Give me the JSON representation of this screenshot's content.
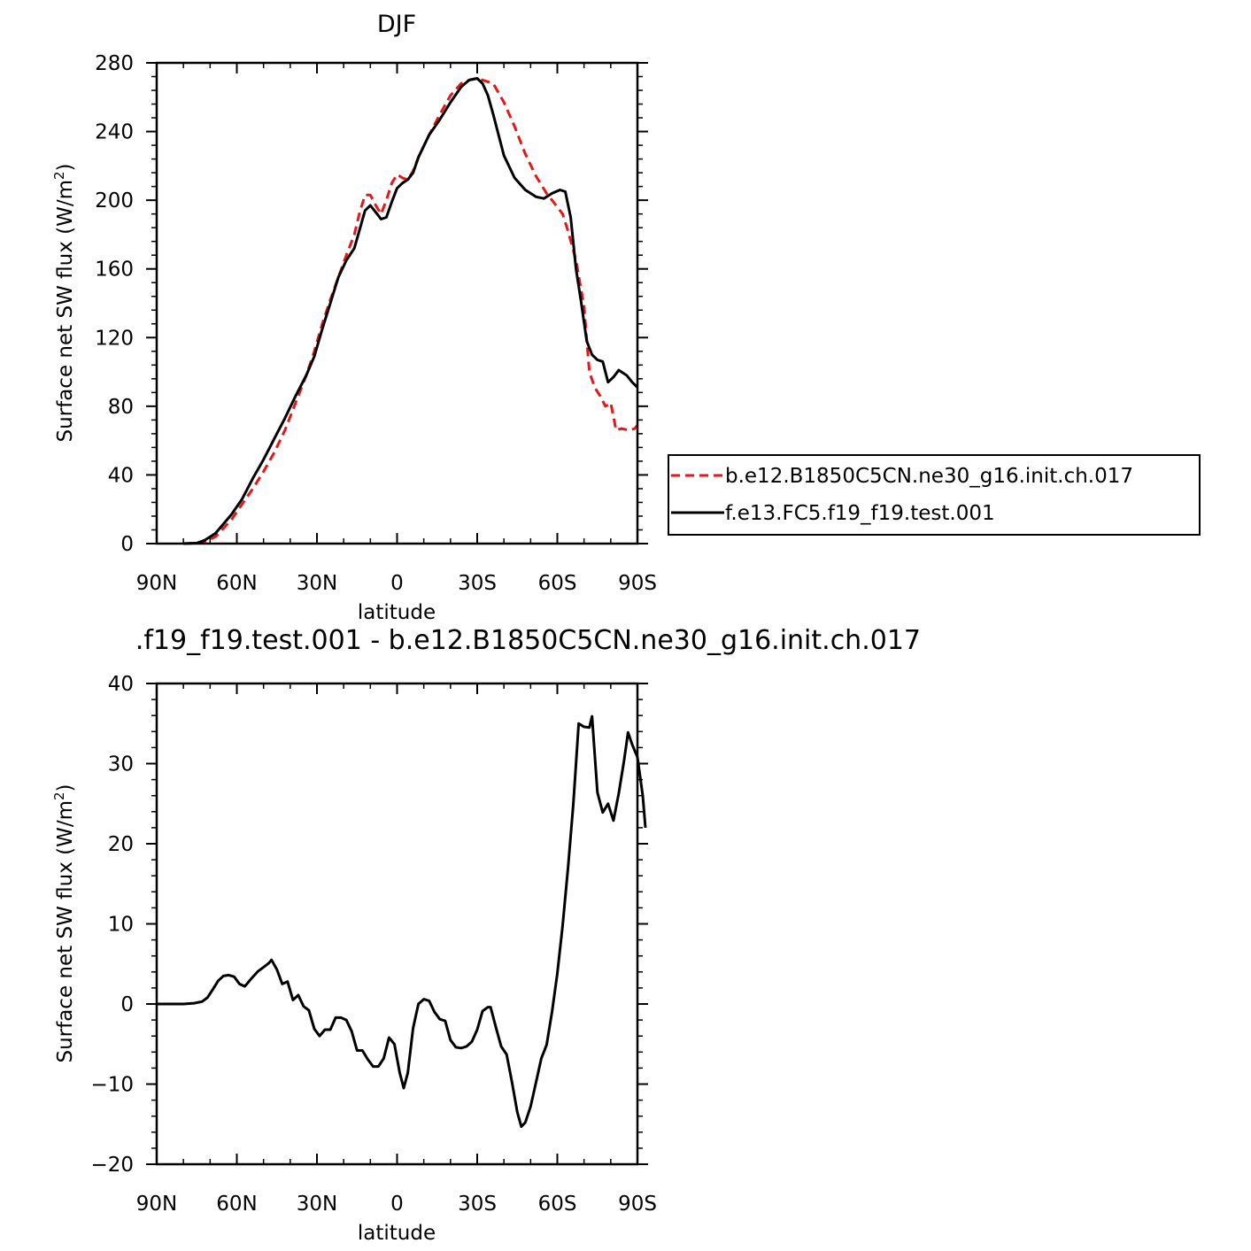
{
  "chart_data": [
    {
      "type": "line",
      "title": "DJF",
      "xlabel": "latitude",
      "ylabel": "Surface net SW flux (W/m²)",
      "ylabel_parts": {
        "main": "Surface net SW flux (W/m",
        "sup": "2",
        "end": ")"
      },
      "xlim": [
        -90,
        90
      ],
      "ylim": [
        0,
        280
      ],
      "x_ticks": [
        -90,
        -60,
        -30,
        0,
        30,
        60,
        90
      ],
      "x_tick_labels": [
        "90N",
        "60N",
        "30N",
        "0",
        "30S",
        "60S",
        "90S"
      ],
      "y_ticks": [
        0,
        40,
        80,
        120,
        160,
        200,
        240,
        280
      ],
      "y_tick_labels": [
        "0",
        "40",
        "80",
        "120",
        "160",
        "200",
        "240",
        "280"
      ],
      "legend": {
        "placement": "right"
      },
      "series": [
        {
          "name": "b.e12.B1850C5CN.ne30_g16.init.ch.017",
          "color": "#e8161b",
          "dash": "dashed",
          "points": [
            [
              -80,
              0
            ],
            [
              -75,
              0.3
            ],
            [
              -72,
              1
            ],
            [
              -68,
              4
            ],
            [
              -62,
              14
            ],
            [
              -58,
              23
            ],
            [
              -54,
              32
            ],
            [
              -50,
              42
            ],
            [
              -46,
              53
            ],
            [
              -42,
              66
            ],
            [
              -38,
              82
            ],
            [
              -34,
              98
            ],
            [
              -31,
              112
            ],
            [
              -28,
              128
            ],
            [
              -25,
              142
            ],
            [
              -22,
              155
            ],
            [
              -19,
              168
            ],
            [
              -16,
              180
            ],
            [
              -14,
              193
            ],
            [
              -12,
              203
            ],
            [
              -10,
              203
            ],
            [
              -8,
              197
            ],
            [
              -6,
              192
            ],
            [
              -4,
              200
            ],
            [
              -2,
              210
            ],
            [
              0,
              215
            ],
            [
              2,
              213
            ],
            [
              4,
              212
            ],
            [
              6,
              217
            ],
            [
              8,
              225
            ],
            [
              12,
              238
            ],
            [
              16,
              250
            ],
            [
              20,
              261
            ],
            [
              24,
              268
            ],
            [
              27,
              270
            ],
            [
              30,
              271
            ],
            [
              32,
              270
            ],
            [
              36,
              268
            ],
            [
              40,
              257
            ],
            [
              44,
              243
            ],
            [
              48,
              227
            ],
            [
              52,
              214
            ],
            [
              56,
              204
            ],
            [
              58,
              200
            ],
            [
              62,
              192
            ],
            [
              64,
              182
            ],
            [
              67,
              165
            ],
            [
              70,
              138
            ],
            [
              72,
              100
            ],
            [
              74,
              91
            ],
            [
              76,
              86
            ],
            [
              78,
              80
            ],
            [
              80,
              82
            ],
            [
              82,
              66
            ],
            [
              84,
              67
            ],
            [
              87,
              66
            ],
            [
              89,
              67
            ],
            [
              90,
              69
            ]
          ]
        },
        {
          "name": "f.e13.FC5.f19_f19.test.001",
          "color": "#000000",
          "dash": "solid",
          "points": [
            [
              -80,
              0
            ],
            [
              -75,
              0.3
            ],
            [
              -72,
              2
            ],
            [
              -68,
              6
            ],
            [
              -62,
              17
            ],
            [
              -58,
              26
            ],
            [
              -54,
              38
            ],
            [
              -50,
              49
            ],
            [
              -46,
              61
            ],
            [
              -42,
              73
            ],
            [
              -38,
              86
            ],
            [
              -34,
              98
            ],
            [
              -31,
              109
            ],
            [
              -28,
              125
            ],
            [
              -25,
              140
            ],
            [
              -22,
              155
            ],
            [
              -19,
              165
            ],
            [
              -16,
              172
            ],
            [
              -14,
              183
            ],
            [
              -12,
              194
            ],
            [
              -10,
              197
            ],
            [
              -8,
              193
            ],
            [
              -6,
              189
            ],
            [
              -4,
              190
            ],
            [
              -2,
              199
            ],
            [
              0,
              207
            ],
            [
              2,
              210
            ],
            [
              4,
              212
            ],
            [
              6,
              216
            ],
            [
              8,
              225
            ],
            [
              12,
              238
            ],
            [
              16,
              247
            ],
            [
              20,
              257
            ],
            [
              24,
              266
            ],
            [
              27,
              270
            ],
            [
              30,
              271
            ],
            [
              32,
              268
            ],
            [
              34,
              261
            ],
            [
              36,
              250
            ],
            [
              40,
              226
            ],
            [
              44,
              213
            ],
            [
              48,
              206
            ],
            [
              52,
              202
            ],
            [
              55,
              201
            ],
            [
              58,
              204
            ],
            [
              61,
              206
            ],
            [
              63,
              205
            ],
            [
              65,
              190
            ],
            [
              67,
              160
            ],
            [
              69,
              140
            ],
            [
              71,
              118
            ],
            [
              73,
              110
            ],
            [
              75,
              107
            ],
            [
              77,
              106
            ],
            [
              79,
              94
            ],
            [
              81,
              97
            ],
            [
              83,
              101
            ],
            [
              86,
              98
            ],
            [
              88,
              94
            ],
            [
              90,
              91
            ]
          ]
        }
      ]
    },
    {
      "type": "line",
      "title": ".f19_f19.test.001 - b.e12.B1850C5CN.ne30_g16.init.ch.017",
      "xlabel": "latitude",
      "ylabel": "Surface net SW flux (W/m²)",
      "ylabel_parts": {
        "main": "Surface net SW flux (W/m",
        "sup": "2",
        "end": ")"
      },
      "xlim": [
        -90,
        90
      ],
      "ylim": [
        -20,
        40
      ],
      "x_ticks": [
        -90,
        -60,
        -30,
        0,
        30,
        60,
        90
      ],
      "x_tick_labels": [
        "90N",
        "60N",
        "30N",
        "0",
        "30S",
        "60S",
        "90S"
      ],
      "y_ticks": [
        -20,
        -10,
        0,
        10,
        20,
        30,
        40
      ],
      "y_tick_labels": [
        "−20",
        "−10",
        "0",
        "10",
        "20",
        "30",
        "40"
      ],
      "series": [
        {
          "color": "#000000",
          "dash": "solid",
          "points": [
            [
              -90,
              0
            ],
            [
              -80,
              0
            ],
            [
              -76,
              0.1
            ],
            [
              -73,
              0.3
            ],
            [
              -71,
              0.8
            ],
            [
              -69,
              1.8
            ],
            [
              -67,
              2.9
            ],
            [
              -65,
              3.5
            ],
            [
              -63,
              3.6
            ],
            [
              -61,
              3.4
            ],
            [
              -59,
              2.5
            ],
            [
              -57,
              2.2
            ],
            [
              -55,
              3
            ],
            [
              -52,
              4.1
            ],
            [
              -50,
              4.6
            ],
            [
              -48,
              5.1
            ],
            [
              -47,
              5.5
            ],
            [
              -45,
              4.3
            ],
            [
              -43,
              2.5
            ],
            [
              -41,
              2.8
            ],
            [
              -39,
              0.5
            ],
            [
              -37,
              1.1
            ],
            [
              -35,
              -0.3
            ],
            [
              -33,
              -0.8
            ],
            [
              -31,
              -3.1
            ],
            [
              -29,
              -4
            ],
            [
              -27,
              -3.2
            ],
            [
              -25,
              -3.2
            ],
            [
              -23,
              -1.7
            ],
            [
              -21,
              -1.7
            ],
            [
              -19,
              -2
            ],
            [
              -17,
              -3.4
            ],
            [
              -15,
              -5.8
            ],
            [
              -13,
              -5.8
            ],
            [
              -11,
              -6.9
            ],
            [
              -9,
              -7.8
            ],
            [
              -7,
              -7.8
            ],
            [
              -5,
              -6.8
            ],
            [
              -3,
              -4.2
            ],
            [
              -1,
              -5
            ],
            [
              1,
              -8.6
            ],
            [
              2.5,
              -10.5
            ],
            [
              4,
              -8.6
            ],
            [
              6,
              -3
            ],
            [
              8,
              0
            ],
            [
              10,
              0.6
            ],
            [
              12,
              0.4
            ],
            [
              14,
              -1
            ],
            [
              16,
              -1.9
            ],
            [
              18,
              -2.1
            ],
            [
              20,
              -4.5
            ],
            [
              22,
              -5.4
            ],
            [
              24,
              -5.5
            ],
            [
              26,
              -5.3
            ],
            [
              28,
              -4.7
            ],
            [
              30,
              -3.2
            ],
            [
              32,
              -0.9
            ],
            [
              34,
              -0.4
            ],
            [
              35,
              -0.4
            ],
            [
              37,
              -2.9
            ],
            [
              39,
              -5.3
            ],
            [
              41,
              -6.3
            ],
            [
              43,
              -9.7
            ],
            [
              45,
              -13.5
            ],
            [
              46.5,
              -15.3
            ],
            [
              48,
              -14.8
            ],
            [
              50,
              -12.8
            ],
            [
              52,
              -9.8
            ],
            [
              54,
              -6.8
            ],
            [
              56,
              -5.1
            ],
            [
              58,
              -1
            ],
            [
              60,
              3.8
            ],
            [
              62,
              9.8
            ],
            [
              64,
              17
            ],
            [
              66,
              25
            ],
            [
              68,
              35
            ],
            [
              70,
              34.6
            ],
            [
              72,
              34.5
            ],
            [
              73,
              35.9
            ],
            [
              75,
              26.4
            ],
            [
              77,
              23.9
            ],
            [
              79,
              25
            ],
            [
              81,
              22.9
            ],
            [
              83,
              26.3
            ],
            [
              85,
              30.4
            ],
            [
              86.5,
              33.9
            ],
            [
              88,
              32.4
            ],
            [
              90,
              30.8
            ],
            [
              92,
              26
            ],
            [
              93,
              22
            ]
          ]
        }
      ]
    }
  ]
}
